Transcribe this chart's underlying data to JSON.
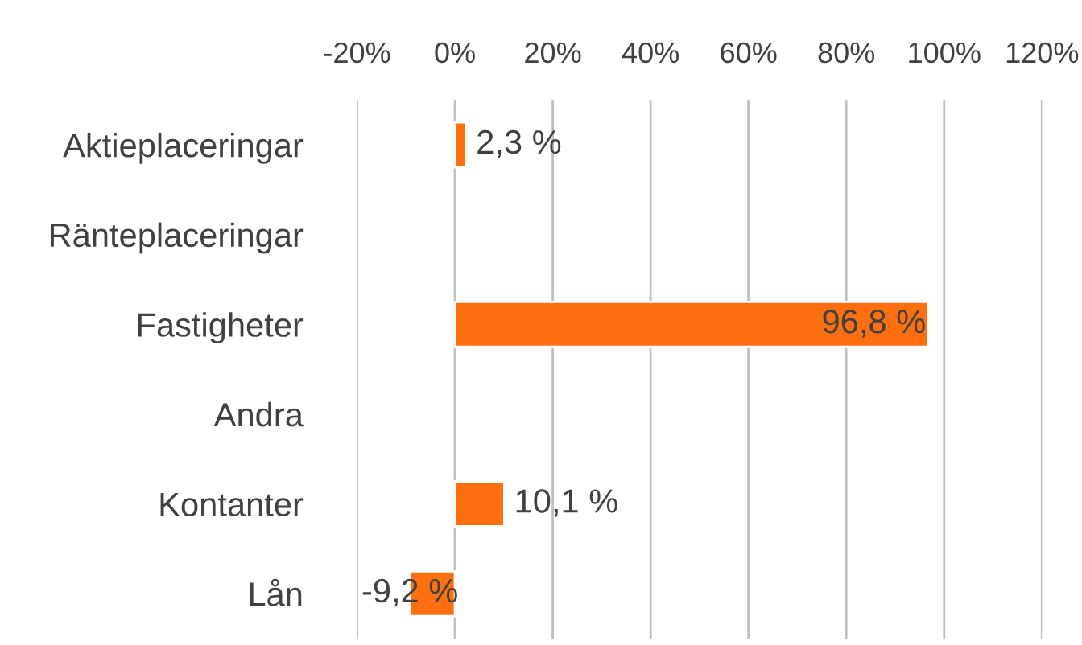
{
  "chart_data": {
    "type": "bar",
    "orientation": "horizontal",
    "categories": [
      "Aktieplaceringar",
      "Ränteplaceringar",
      "Fastigheter",
      "Andra",
      "Kontanter",
      "Lån"
    ],
    "values": [
      2.3,
      null,
      96.8,
      null,
      10.1,
      -9.2
    ],
    "value_labels": [
      "2,3 %",
      null,
      "96,8 %",
      null,
      "10,1 %",
      "-9,2 %"
    ],
    "color": "#ff6f0f",
    "xlim": [
      -20,
      120
    ],
    "xticks": [
      {
        "value": -20,
        "label": "-20%"
      },
      {
        "value": 0,
        "label": "0%"
      },
      {
        "value": 20,
        "label": "20%"
      },
      {
        "value": 40,
        "label": "40%"
      },
      {
        "value": 60,
        "label": "60%"
      },
      {
        "value": 80,
        "label": "80%"
      },
      {
        "value": 100,
        "label": "100%"
      },
      {
        "value": 120,
        "label": "120%"
      }
    ],
    "grid": "x",
    "legend": false
  }
}
